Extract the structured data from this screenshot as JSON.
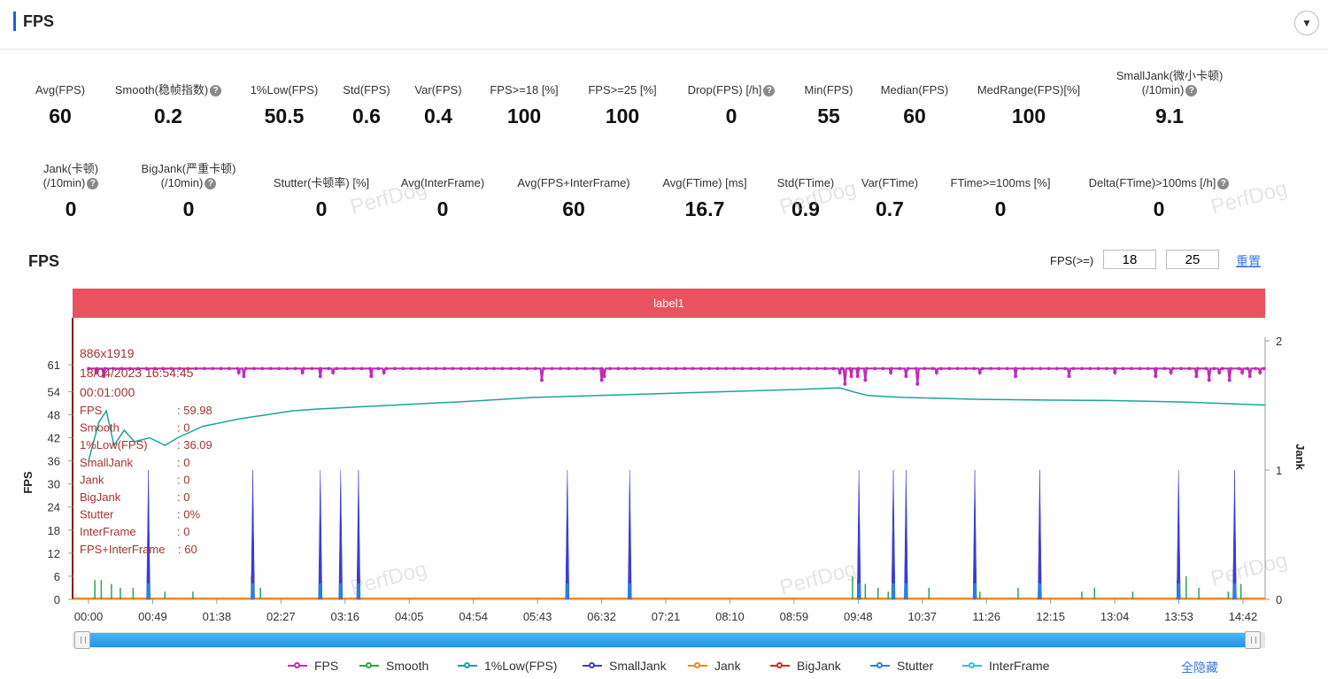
{
  "header": {
    "title": "FPS",
    "collapse_icon": "chevron-down-icon"
  },
  "metrics_row1": [
    {
      "label": "Avg(FPS)",
      "value": "60",
      "help": false
    },
    {
      "label": "Smooth(稳帧指数)",
      "value": "0.2",
      "help": true
    },
    {
      "label": "1%Low(FPS)",
      "value": "50.5",
      "help": false
    },
    {
      "label": "Std(FPS)",
      "value": "0.6",
      "help": false
    },
    {
      "label": "Var(FPS)",
      "value": "0.4",
      "help": false
    },
    {
      "label": "FPS>=18 [%]",
      "value": "100",
      "help": false
    },
    {
      "label": "FPS>=25 [%]",
      "value": "100",
      "help": false
    },
    {
      "label": "Drop(FPS) [/h]",
      "value": "0",
      "help": true
    },
    {
      "label": "Min(FPS)",
      "value": "55",
      "help": false
    },
    {
      "label": "Median(FPS)",
      "value": "60",
      "help": false
    },
    {
      "label": "MedRange(FPS)[%]",
      "value": "100",
      "help": false
    },
    {
      "label": "SmallJank(微小卡顿)",
      "label2": "(/10min)",
      "value": "9.1",
      "help": true
    }
  ],
  "metrics_row2": [
    {
      "label": "Jank(卡顿)",
      "label2": "(/10min)",
      "value": "0",
      "help": true
    },
    {
      "label": "BigJank(严重卡顿)",
      "label2": "(/10min)",
      "value": "0",
      "help": true
    },
    {
      "label": "Stutter(卡顿率) [%]",
      "value": "0",
      "help": false
    },
    {
      "label": "Avg(InterFrame)",
      "value": "0",
      "help": false
    },
    {
      "label": "Avg(FPS+InterFrame)",
      "value": "60",
      "help": false
    },
    {
      "label": "Avg(FTime) [ms]",
      "value": "16.7",
      "help": false
    },
    {
      "label": "Std(FTime)",
      "value": "0.9",
      "help": false
    },
    {
      "label": "Var(FTime)",
      "value": "0.7",
      "help": false
    },
    {
      "label": "FTime>=100ms [%]",
      "value": "0",
      "help": false
    },
    {
      "label": "Delta(FTime)>100ms [/h]",
      "value": "0",
      "help": true
    }
  ],
  "watermark": "PerfDog",
  "chart_section": {
    "title": "FPS",
    "filter_label": "FPS(>=)",
    "filter_values": [
      "18",
      "25"
    ],
    "reset_label": "重置",
    "label_bar": "label1"
  },
  "tooltip": {
    "lines": [
      "886x1919",
      "18/04/2023 16:54:45",
      "00:01:000"
    ],
    "rows": [
      {
        "k": "FPS",
        "v": ": 59.98"
      },
      {
        "k": "Smooth",
        "v": ": 0"
      },
      {
        "k": "1%Low(FPS)",
        "v": ": 36.09"
      },
      {
        "k": "SmallJank",
        "v": ": 0"
      },
      {
        "k": "Jank",
        "v": ": 0"
      },
      {
        "k": "BigJank",
        "v": ": 0"
      },
      {
        "k": "Stutter",
        "v": ": 0%"
      },
      {
        "k": "InterFrame",
        "v": ": 0"
      },
      {
        "k": "FPS+InterFrame",
        "v": ": 60"
      }
    ]
  },
  "legend": {
    "items": [
      {
        "name": "FPS",
        "color": "#c02bb8"
      },
      {
        "name": "Smooth",
        "color": "#2ea44f"
      },
      {
        "name": "1%Low(FPS)",
        "color": "#1aa59a"
      },
      {
        "name": "SmallJank",
        "color": "#3b3bd6"
      },
      {
        "name": "Jank",
        "color": "#f08a24"
      },
      {
        "name": "BigJank",
        "color": "#d9252a"
      },
      {
        "name": "Stutter",
        "color": "#2f7fd8"
      },
      {
        "name": "InterFrame",
        "color": "#2bc3d8"
      }
    ],
    "hide_all_label": "全隐藏"
  },
  "chart_data": {
    "type": "line",
    "ylabel": "FPS",
    "y2label": "Jank",
    "yticks": [
      0,
      6,
      12,
      18,
      24,
      30,
      36,
      42,
      48,
      54,
      61
    ],
    "y2ticks": [
      0,
      1,
      2
    ],
    "ylim": [
      0,
      61
    ],
    "y2lim": [
      0,
      2
    ],
    "xticks": [
      "00:00",
      "00:49",
      "01:38",
      "02:27",
      "03:16",
      "04:05",
      "04:54",
      "05:43",
      "06:32",
      "07:21",
      "08:10",
      "08:59",
      "09:48",
      "10:37",
      "11:26",
      "12:15",
      "13:04",
      "13:53",
      "14:42"
    ],
    "x_range_seconds": [
      0,
      924
    ],
    "fps_baseline": 60,
    "fps_dips": [
      {
        "t": 6,
        "v": 59
      },
      {
        "t": 12,
        "v": 58
      },
      {
        "t": 118,
        "v": 59
      },
      {
        "t": 122,
        "v": 58
      },
      {
        "t": 168,
        "v": 59
      },
      {
        "t": 182,
        "v": 58
      },
      {
        "t": 192,
        "v": 59
      },
      {
        "t": 222,
        "v": 58
      },
      {
        "t": 232,
        "v": 59
      },
      {
        "t": 356,
        "v": 57
      },
      {
        "t": 403,
        "v": 57
      },
      {
        "t": 405,
        "v": 58
      },
      {
        "t": 590,
        "v": 59
      },
      {
        "t": 594,
        "v": 56
      },
      {
        "t": 599,
        "v": 58
      },
      {
        "t": 604,
        "v": 58
      },
      {
        "t": 610,
        "v": 57
      },
      {
        "t": 630,
        "v": 59
      },
      {
        "t": 642,
        "v": 58
      },
      {
        "t": 651,
        "v": 56
      },
      {
        "t": 666,
        "v": 59
      },
      {
        "t": 700,
        "v": 59
      },
      {
        "t": 728,
        "v": 58
      },
      {
        "t": 770,
        "v": 58
      },
      {
        "t": 806,
        "v": 59
      },
      {
        "t": 838,
        "v": 58
      },
      {
        "t": 850,
        "v": 59
      },
      {
        "t": 870,
        "v": 58
      },
      {
        "t": 880,
        "v": 57
      },
      {
        "t": 888,
        "v": 59
      },
      {
        "t": 896,
        "v": 57
      },
      {
        "t": 906,
        "v": 59
      },
      {
        "t": 912,
        "v": 58
      },
      {
        "t": 920,
        "v": 59
      }
    ],
    "low1_fps": [
      [
        0,
        36
      ],
      [
        8,
        46
      ],
      [
        14,
        49
      ],
      [
        20,
        40
      ],
      [
        28,
        44
      ],
      [
        36,
        41
      ],
      [
        48,
        42
      ],
      [
        60,
        40
      ],
      [
        70,
        42
      ],
      [
        90,
        45
      ],
      [
        120,
        47
      ],
      [
        140,
        48
      ],
      [
        160,
        49
      ],
      [
        180,
        49.5
      ],
      [
        210,
        50
      ],
      [
        240,
        50.5
      ],
      [
        270,
        51
      ],
      [
        300,
        51.5
      ],
      [
        350,
        52.5
      ],
      [
        400,
        53
      ],
      [
        450,
        53.5
      ],
      [
        500,
        54
      ],
      [
        550,
        54.5
      ],
      [
        590,
        55
      ],
      [
        600,
        54
      ],
      [
        612,
        53
      ],
      [
        640,
        52.5
      ],
      [
        700,
        52
      ],
      [
        760,
        51.8
      ],
      [
        800,
        51.7
      ],
      [
        860,
        51.3
      ],
      [
        900,
        50.8
      ],
      [
        924,
        50.5
      ]
    ],
    "smalljank_spikes": [
      47,
      129,
      182,
      198,
      212,
      376,
      425,
      605,
      632,
      642,
      696,
      747,
      856,
      900
    ],
    "smooth_small": [
      [
        5,
        5
      ],
      [
        10,
        5
      ],
      [
        18,
        4
      ],
      [
        25,
        3
      ],
      [
        35,
        3
      ],
      [
        60,
        2
      ],
      [
        82,
        2
      ],
      [
        128,
        6
      ],
      [
        135,
        3
      ],
      [
        600,
        6
      ],
      [
        605,
        5
      ],
      [
        610,
        4
      ],
      [
        620,
        3
      ],
      [
        628,
        2
      ],
      [
        660,
        3
      ],
      [
        700,
        2
      ],
      [
        730,
        3
      ],
      [
        780,
        2
      ],
      [
        790,
        3
      ],
      [
        820,
        2
      ],
      [
        855,
        5
      ],
      [
        862,
        6
      ],
      [
        872,
        3
      ],
      [
        895,
        2
      ],
      [
        905,
        4
      ]
    ]
  }
}
